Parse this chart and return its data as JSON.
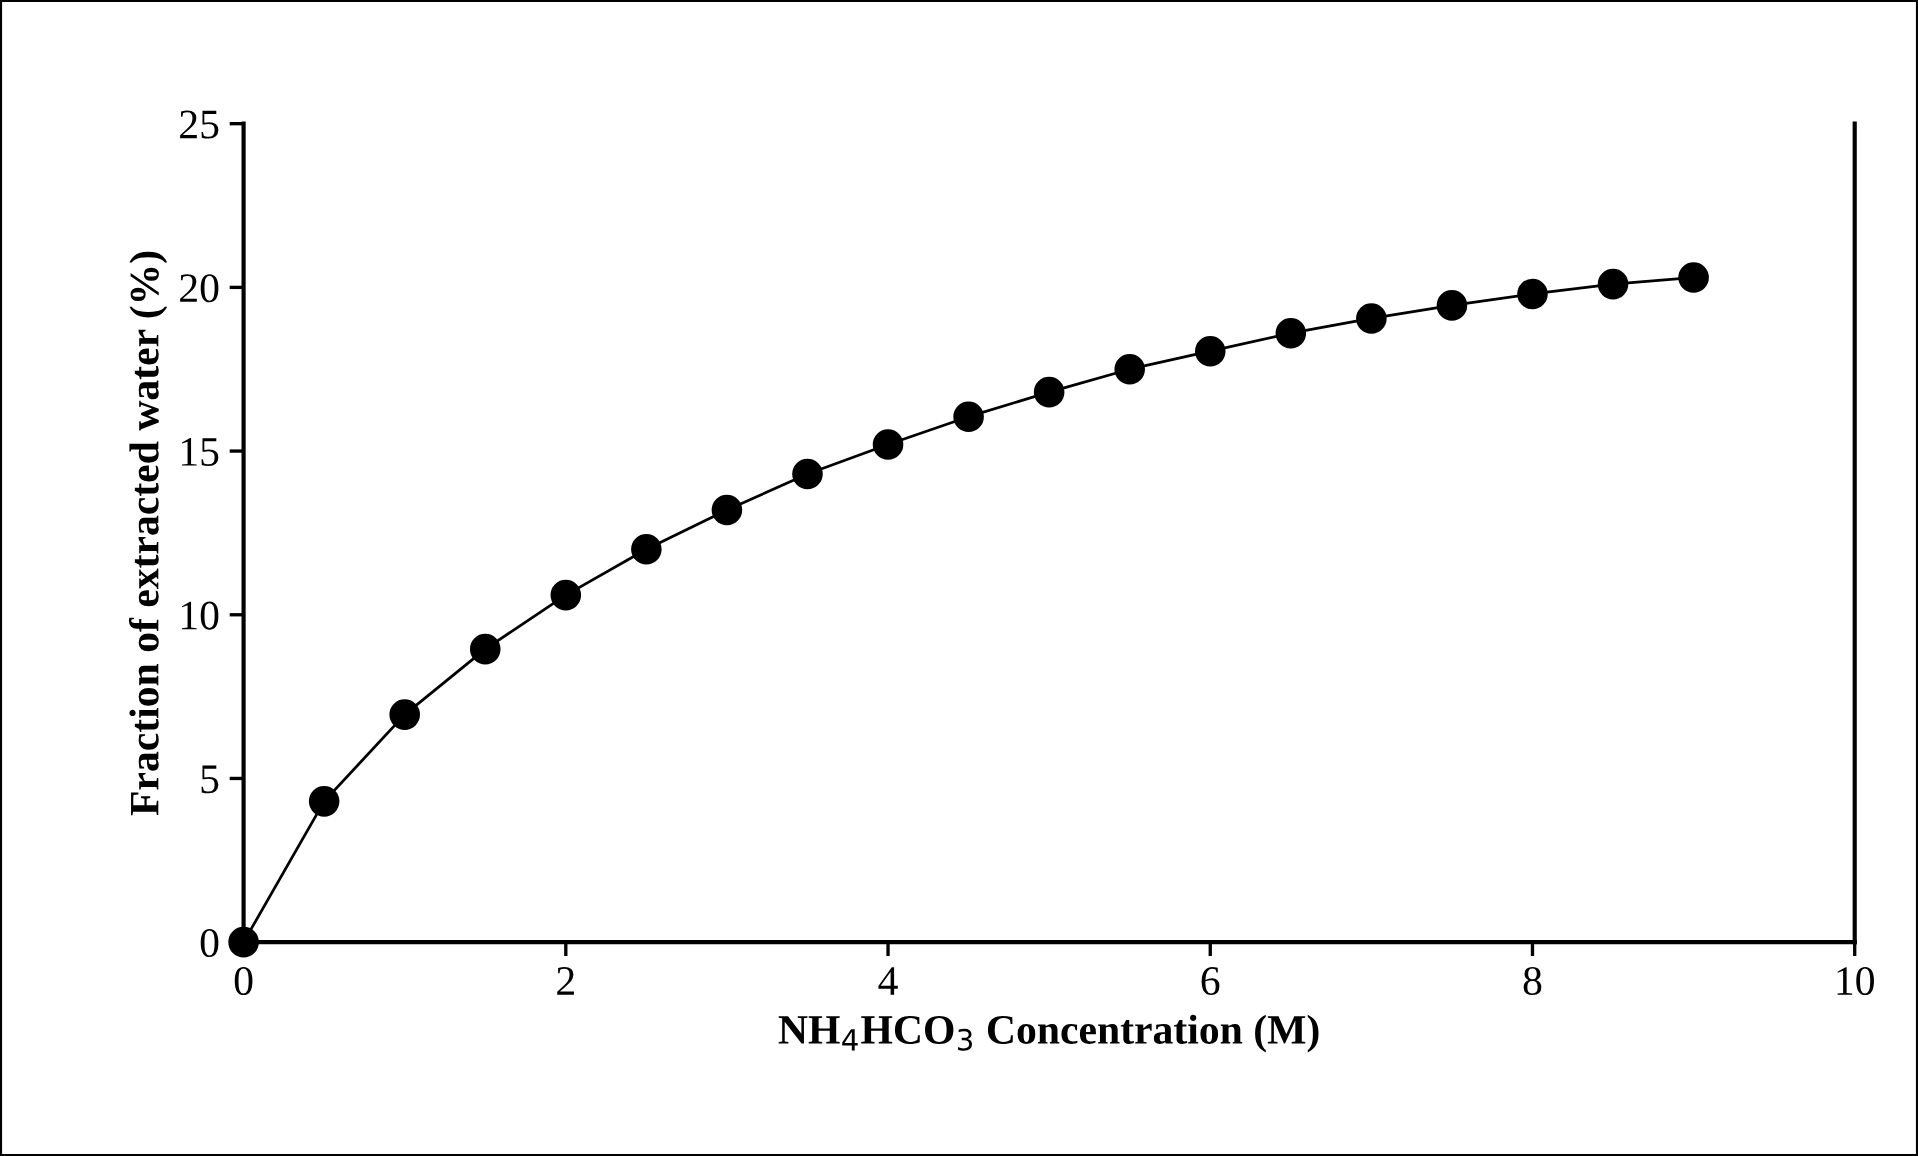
{
  "chart_data": {
    "type": "line",
    "xlabel": "NH$_{4}$HCO$_{3}$ Concentration (M)",
    "ylabel": "Fraction of extracted water (%)",
    "x": [
      0,
      0.5,
      1,
      1.5,
      2,
      2.5,
      3,
      3.5,
      4,
      4.5,
      5,
      5.5,
      6,
      6.5,
      7,
      7.5,
      8,
      8.5,
      9
    ],
    "series": [
      {
        "color": "#000000",
        "values": [
          0,
          4.3,
          6.95,
          8.95,
          10.6,
          12.0,
          13.2,
          14.3,
          15.2,
          16.05,
          16.8,
          17.5,
          18.05,
          18.6,
          19.05,
          19.45,
          19.8,
          20.1,
          20.3
        ]
      }
    ],
    "xlim": [
      0,
      10
    ],
    "xticks": [
      0,
      2,
      4,
      6,
      8,
      10
    ],
    "ylim": [
      0,
      25
    ],
    "yticks": [
      0,
      5,
      10,
      15,
      20,
      25
    ],
    "grid": false,
    "legend": false,
    "marker": "circle",
    "line_style": "solid"
  }
}
